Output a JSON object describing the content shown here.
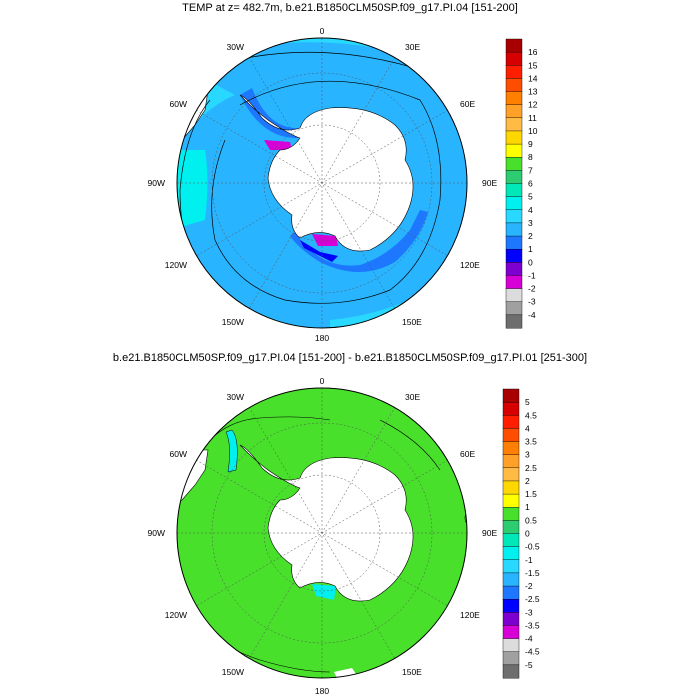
{
  "panels": [
    {
      "title": "TEMP at z= 482.7m, b.e21.B1850CLM50SP.f09_g17.PI.04 [151-200]",
      "lon_labels": {
        "top": "0",
        "tr": "30E",
        "r1": "60E",
        "r2": "90E",
        "r3": "120E",
        "br": "150E",
        "bottom": "180",
        "bl": "150W",
        "l3": "120W",
        "l2": "90W",
        "l1": "60W",
        "tl": "30W"
      },
      "colorbar": {
        "labels": [
          "16",
          "15",
          "14",
          "13",
          "12",
          "11",
          "10",
          "9",
          "8",
          "7",
          "6",
          "5",
          "4",
          "3",
          "2",
          "1",
          "0",
          "-1",
          "-2",
          "-3",
          "-4"
        ],
        "colors": [
          "#a80000",
          "#d60000",
          "#ff1e00",
          "#ff4d00",
          "#ff7f00",
          "#ffa028",
          "#ffbb44",
          "#ffd700",
          "#ffff00",
          "#48e02a",
          "#2ecc71",
          "#00e8b8",
          "#00f0f0",
          "#28d8ff",
          "#28b4ff",
          "#1e78ff",
          "#0000ff",
          "#7d00d0",
          "#d700d7",
          "#dcdcdc",
          "#a0a0a0",
          "#6e6e6e"
        ]
      }
    },
    {
      "title": "b.e21.B1850CLM50SP.f09_g17.PI.04 [151-200] - b.e21.B1850CLM50SP.f09_g17.PI.01 [251-300]",
      "lon_labels": {
        "top": "0",
        "tr": "30E",
        "r1": "60E",
        "r2": "90E",
        "r3": "120E",
        "br": "150E",
        "bottom": "180",
        "bl": "150W",
        "l3": "120W",
        "l2": "90W",
        "l1": "60W",
        "tl": "30W"
      },
      "colorbar": {
        "labels": [
          "5",
          "4.5",
          "4",
          "3.5",
          "3",
          "2.5",
          "2",
          "1.5",
          "1",
          "0.5",
          "0",
          "-0.5",
          "-1",
          "-1.5",
          "-2",
          "-2.5",
          "-3",
          "-3.5",
          "-4",
          "-4.5",
          "-5"
        ],
        "colors": [
          "#a80000",
          "#d60000",
          "#ff1e00",
          "#ff4d00",
          "#ff7f00",
          "#ffa028",
          "#ffbb44",
          "#ffd700",
          "#ffff00",
          "#48e02a",
          "#2ecc71",
          "#00e8b8",
          "#00f0f0",
          "#28d8ff",
          "#28b4ff",
          "#1e78ff",
          "#0000ff",
          "#7d00d0",
          "#d700d7",
          "#dcdcdc",
          "#a0a0a0",
          "#6e6e6e"
        ]
      }
    }
  ]
}
